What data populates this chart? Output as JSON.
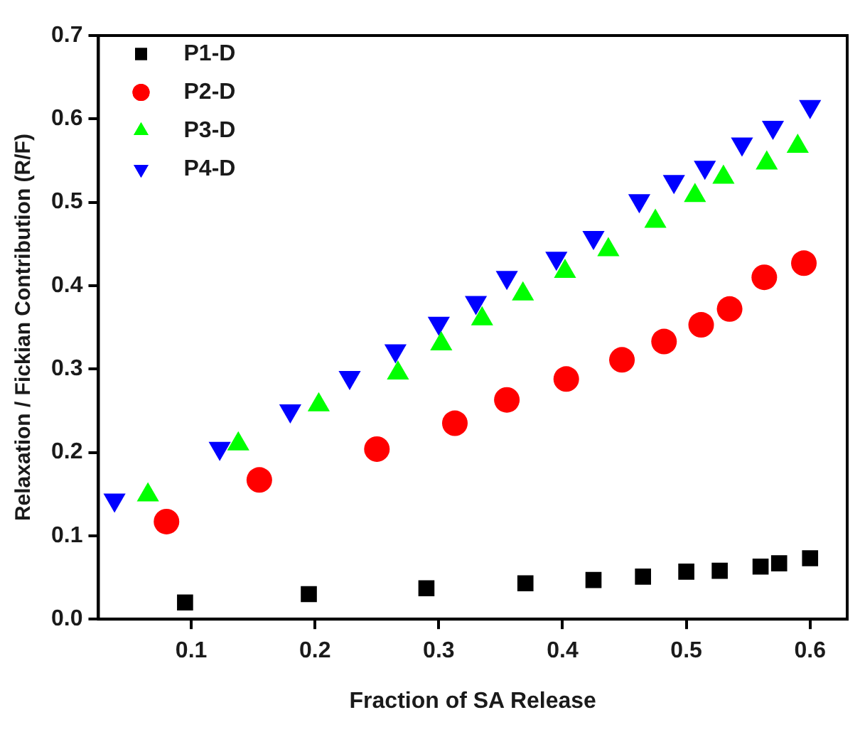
{
  "chart_data": {
    "type": "scatter",
    "xlabel": "Fraction of SA Release",
    "ylabel": "Relaxation / Fickian Contribution (R/F)",
    "xlim": [
      0.025,
      0.63
    ],
    "ylim": [
      0,
      0.7
    ],
    "xticks": [
      0.1,
      0.2,
      0.3,
      0.4,
      0.5,
      0.6
    ],
    "yticks": [
      {
        "value": 0,
        "label": "0.0"
      },
      0.1,
      0.2,
      0.3,
      0.4,
      0.5,
      0.6,
      0.7
    ],
    "grid": false,
    "legend": "top left",
    "series": [
      {
        "name": "P1-D",
        "color": "#000000",
        "marker": "square",
        "x": [
          0.095,
          0.195,
          0.29,
          0.37,
          0.425,
          0.465,
          0.5,
          0.527,
          0.56,
          0.575,
          0.6
        ],
        "values": [
          0.02,
          0.03,
          0.037,
          0.043,
          0.047,
          0.051,
          0.057,
          0.058,
          0.063,
          0.067,
          0.073
        ]
      },
      {
        "name": "P2-D",
        "color": "#ff0000",
        "marker": "circle",
        "x": [
          0.08,
          0.155,
          0.25,
          0.313,
          0.355,
          0.403,
          0.448,
          0.482,
          0.512,
          0.535,
          0.563,
          0.595
        ],
        "values": [
          0.117,
          0.167,
          0.204,
          0.235,
          0.263,
          0.288,
          0.311,
          0.333,
          0.353,
          0.372,
          0.41,
          0.427
        ]
      },
      {
        "name": "P3-D",
        "color": "#00ff00",
        "marker": "triangle",
        "x": [
          0.065,
          0.138,
          0.203,
          0.267,
          0.302,
          0.335,
          0.368,
          0.402,
          0.437,
          0.475,
          0.507,
          0.53,
          0.565,
          0.59
        ],
        "values": [
          0.149,
          0.21,
          0.257,
          0.295,
          0.33,
          0.36,
          0.39,
          0.417,
          0.443,
          0.477,
          0.508,
          0.53,
          0.547,
          0.567
        ]
      },
      {
        "name": "P4-D",
        "color": "#0000ff",
        "marker": "triangle-down",
        "x": [
          0.038,
          0.123,
          0.18,
          0.228,
          0.265,
          0.3,
          0.33,
          0.355,
          0.395,
          0.425,
          0.462,
          0.49,
          0.515,
          0.545,
          0.57,
          0.6
        ],
        "values": [
          0.143,
          0.205,
          0.25,
          0.29,
          0.322,
          0.355,
          0.38,
          0.41,
          0.433,
          0.458,
          0.502,
          0.525,
          0.542,
          0.57,
          0.59,
          0.615
        ]
      }
    ]
  }
}
